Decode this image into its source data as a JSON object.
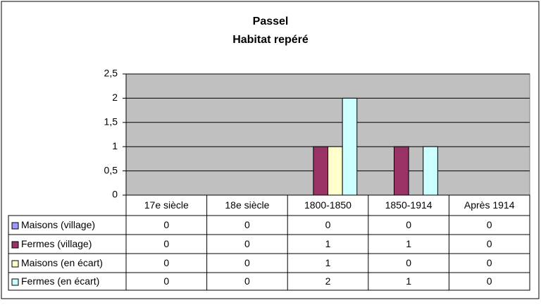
{
  "chart_data": {
    "type": "bar",
    "title": "Passel",
    "subtitle": "Habitat repéré",
    "categories": [
      "17e siècle",
      "18e siècle",
      "1800-1850",
      "1850-1914",
      "Après 1914"
    ],
    "series": [
      {
        "name": "Maisons (village)",
        "color": "#9999ff",
        "values": [
          0,
          0,
          0,
          0,
          0
        ]
      },
      {
        "name": "Fermes (village)",
        "color": "#993366",
        "values": [
          0,
          0,
          1,
          1,
          0
        ]
      },
      {
        "name": "Maisons (en écart)",
        "color": "#ffffcc",
        "values": [
          0,
          0,
          1,
          0,
          0
        ]
      },
      {
        "name": "Fermes (en écart)",
        "color": "#ccffff",
        "values": [
          0,
          0,
          2,
          1,
          0
        ]
      }
    ],
    "ylim": [
      0,
      2.5
    ],
    "yticks": [
      0,
      {
        "value": 0.5,
        "label": "0,5"
      },
      1,
      {
        "value": 1.5,
        "label": "1,5"
      },
      2,
      {
        "value": 2.5,
        "label": "2,5"
      }
    ],
    "grid": true,
    "plot_background": "#c0c0c0",
    "legend": "data-table"
  }
}
